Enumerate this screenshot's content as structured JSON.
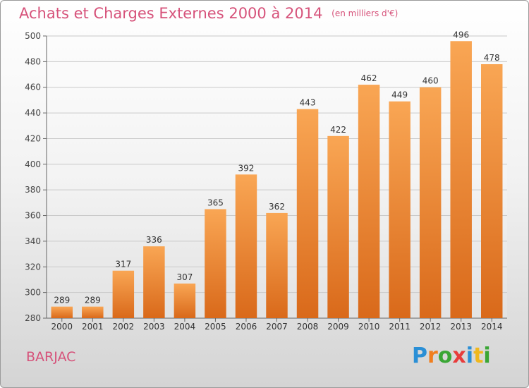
{
  "chart_data": {
    "type": "bar",
    "title": "Achats et Charges Externes 2000 à 2014",
    "subtitle": "(en milliers d'€)",
    "categories": [
      "2000",
      "2001",
      "2002",
      "2003",
      "2004",
      "2005",
      "2006",
      "2007",
      "2008",
      "2009",
      "2010",
      "2011",
      "2012",
      "2013",
      "2014"
    ],
    "values": [
      289,
      289,
      317,
      336,
      307,
      365,
      392,
      362,
      443,
      422,
      462,
      449,
      460,
      496,
      478
    ],
    "yticks": [
      280,
      300,
      320,
      340,
      360,
      380,
      400,
      420,
      440,
      460,
      480,
      500
    ],
    "ylim": [
      280,
      500
    ],
    "xlabel": "",
    "ylabel": "",
    "grid": true,
    "bar_color": "#f28b2c"
  },
  "footer": {
    "commune": "BARJAC"
  },
  "brand": {
    "letters": [
      "P",
      "r",
      "o",
      "x",
      "i",
      "t",
      "i"
    ],
    "colors": [
      "#2a8fd6",
      "#f07e1e",
      "#3aa635",
      "#e83c3c",
      "#2a8fd6",
      "#f0b81e",
      "#3aa635"
    ]
  }
}
